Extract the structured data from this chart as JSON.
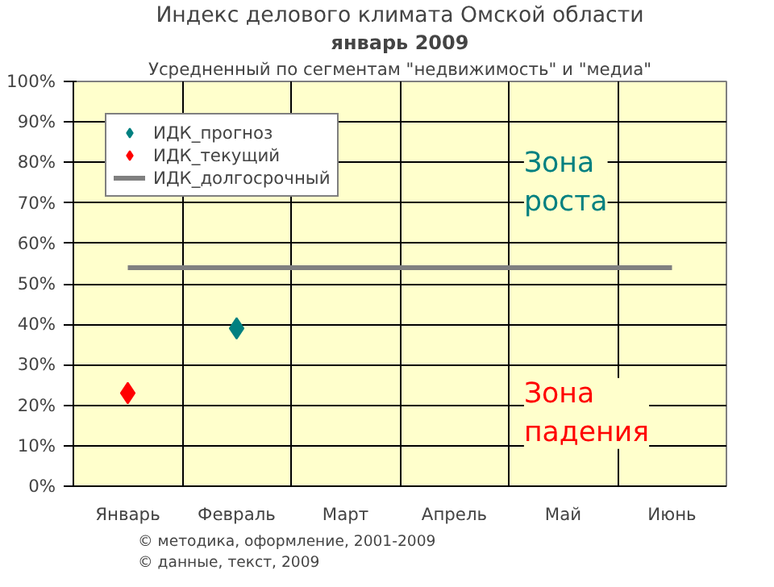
{
  "chart_data": {
    "type": "scatter",
    "title": "Индекс делового климата Омской области",
    "subtitle": "январь 2009",
    "categories": [
      "Январь",
      "Февраль",
      "Март",
      "Апрель",
      "Май",
      "Июнь"
    ],
    "series": [
      {
        "name": "ИДК_прогноз",
        "color": "#008080",
        "values": [
          null,
          39,
          null,
          null,
          null,
          null
        ]
      },
      {
        "name": "ИДК_текущий",
        "color": "#ff0000",
        "values": [
          23,
          null,
          null,
          null,
          null,
          null
        ]
      },
      {
        "name": "ИДК_долгосрочный",
        "type": "line",
        "marker": "none",
        "color": "#808080",
        "values": [
          54,
          54,
          54,
          54,
          54,
          54
        ]
      }
    ],
    "ylim": [
      0,
      100
    ],
    "yticks": [
      {
        "value": 0,
        "label": "0%"
      },
      {
        "value": 10,
        "label": "10%"
      },
      {
        "value": 20,
        "label": "20%"
      },
      {
        "value": 30,
        "label": "30%"
      },
      {
        "value": 40,
        "label": "40%"
      },
      {
        "value": 50,
        "label": "50%"
      },
      {
        "value": 60,
        "label": "60%"
      },
      {
        "value": 70,
        "label": "70%"
      },
      {
        "value": 80,
        "label": "80%"
      },
      {
        "value": 90,
        "label": "90%"
      },
      {
        "value": 100,
        "label": "100%"
      }
    ],
    "annotations": [
      "Усредненный по сегментам \"недвижимость\" и \"медиа\"",
      "Зона роста",
      "Зона падения",
      "© методика, оформление, 2001-2009",
      "© данные, текст, 2009"
    ],
    "grid": true,
    "legend": "top left",
    "marker": "diamond"
  }
}
